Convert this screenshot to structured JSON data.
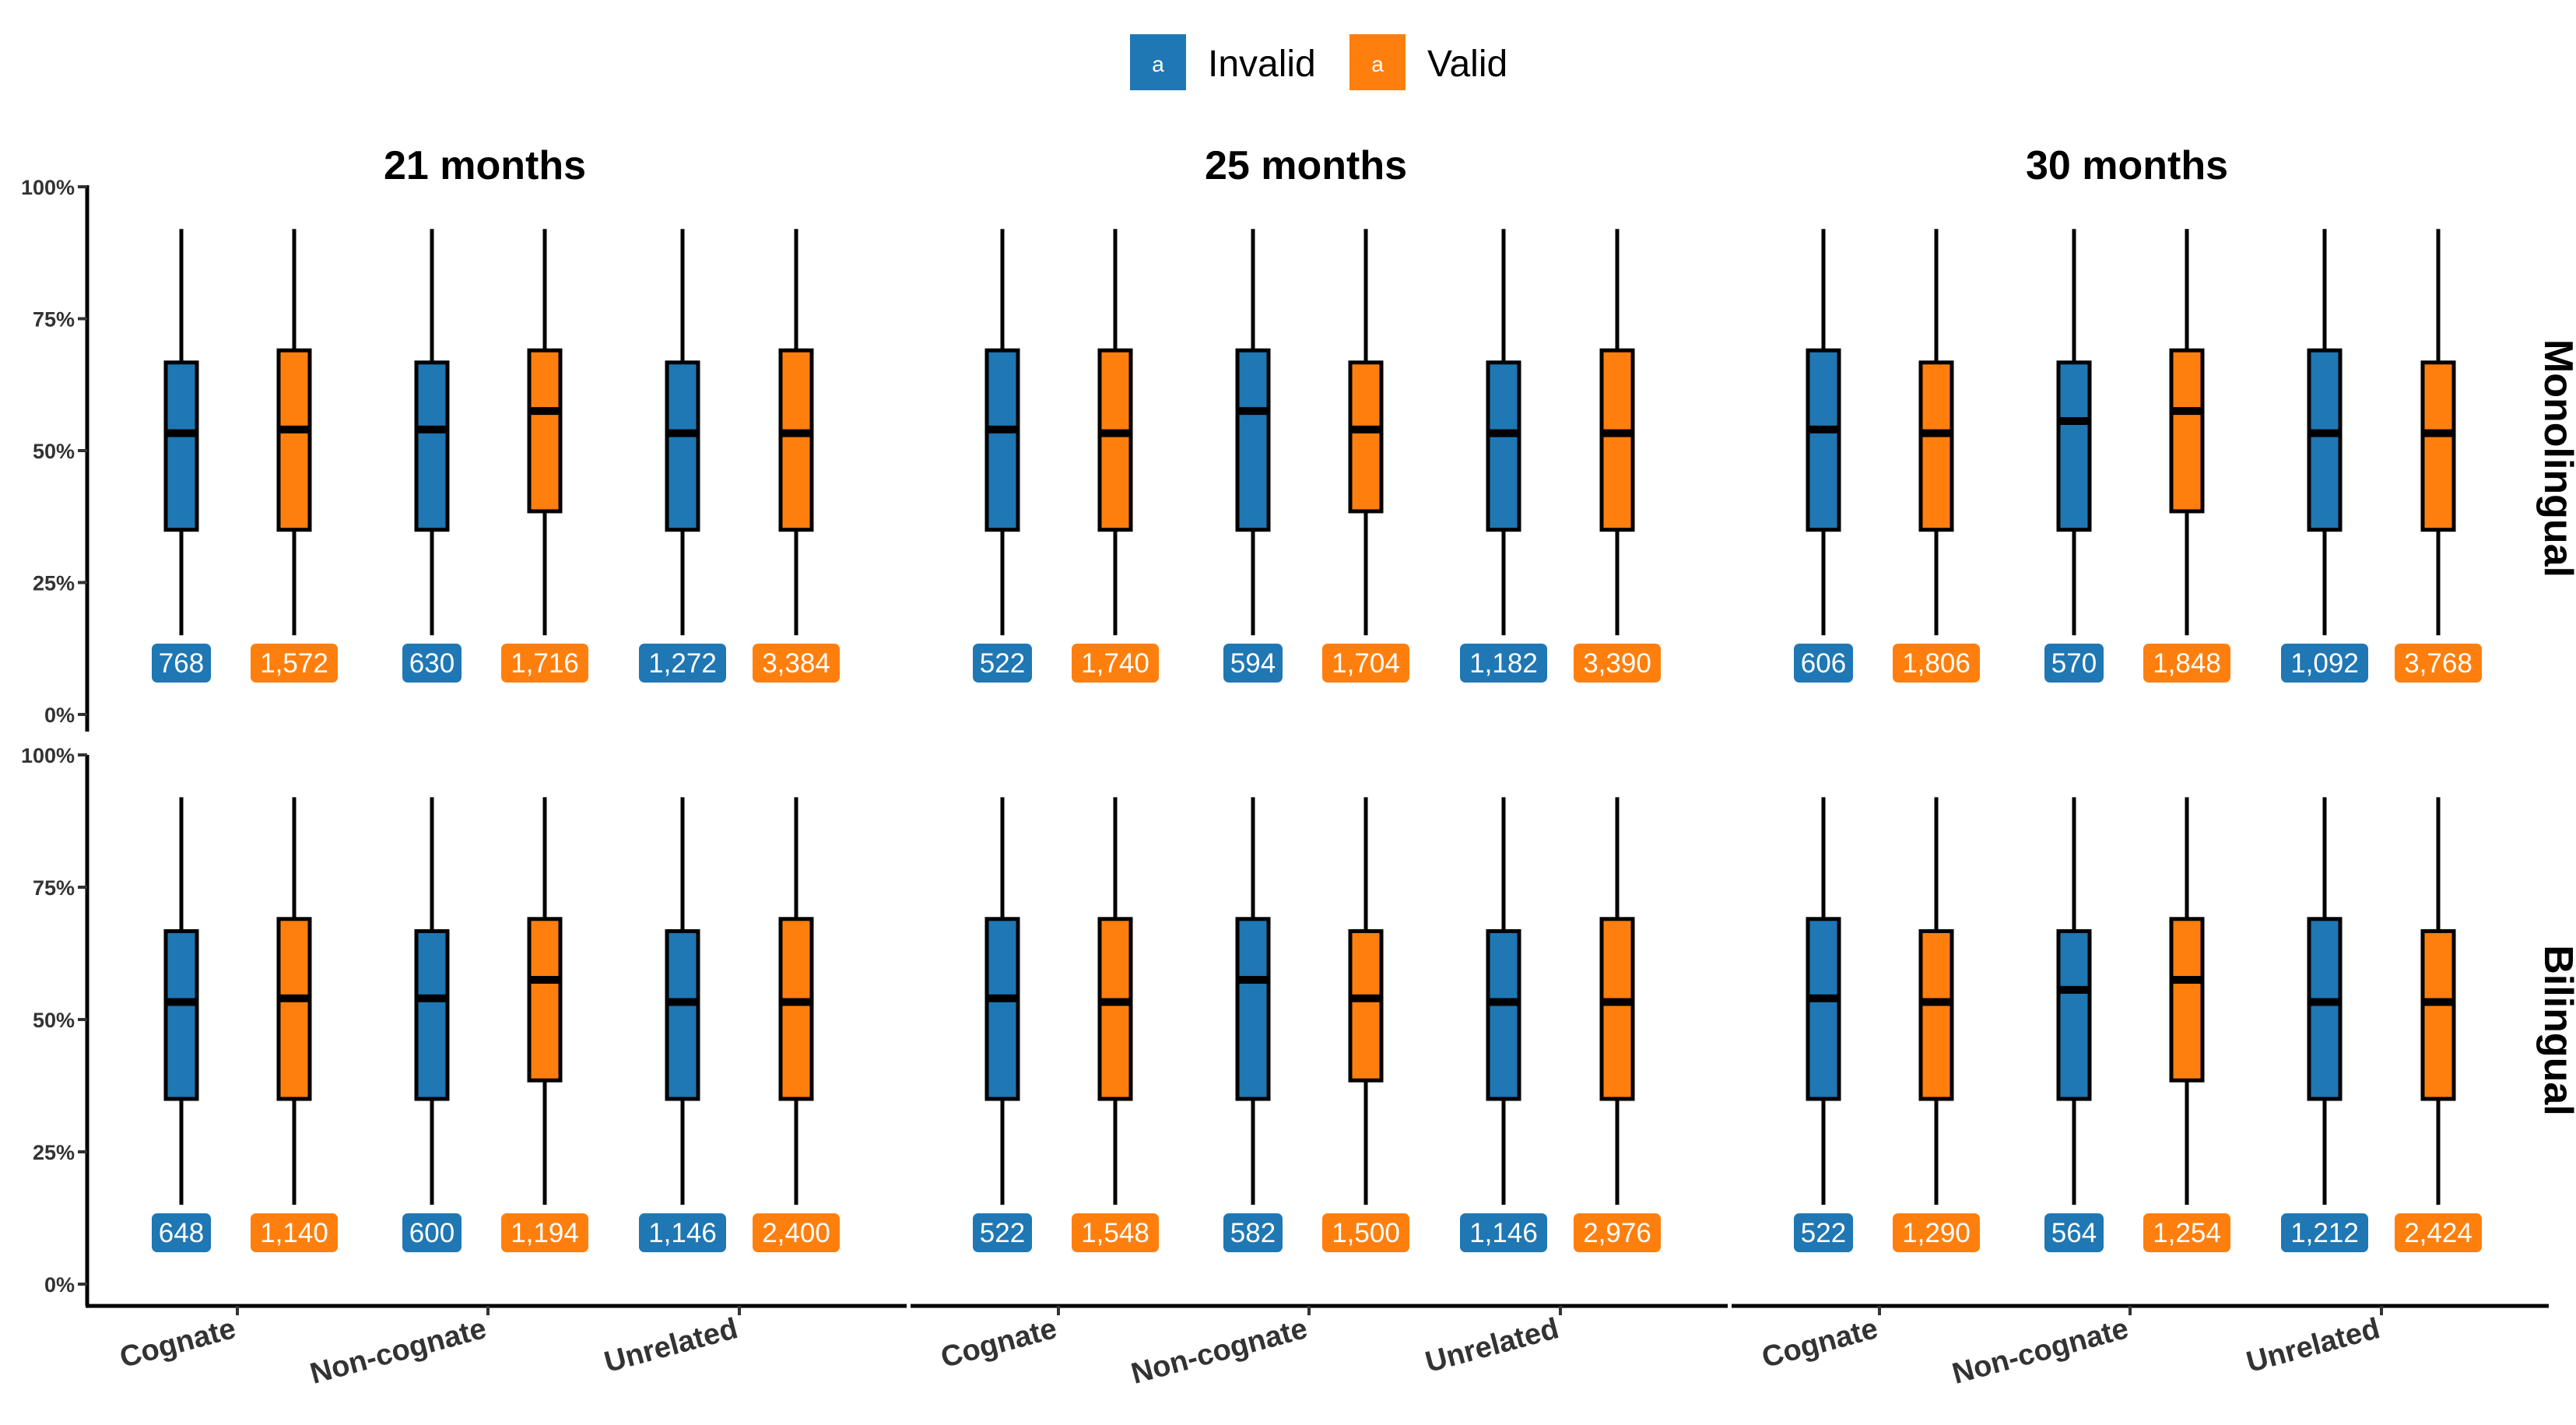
{
  "chart_data": {
    "type": "boxplot",
    "colors": {
      "Invalid": "#1f77b4",
      "Valid": "#ff7f0e"
    },
    "legend": {
      "position": "top",
      "key_letter": "a",
      "entries": [
        "Invalid",
        "Valid"
      ]
    },
    "columns": [
      "21 months",
      "25 months",
      "30 months"
    ],
    "rows": [
      "Monolingual",
      "Bilingual"
    ],
    "categories": [
      "Cognate",
      "Non-cognate",
      "Unrelated"
    ],
    "series": [
      "Invalid",
      "Valid"
    ],
    "y_ticks": [
      "0%",
      "25%",
      "50%",
      "75%",
      "100%"
    ],
    "ylim": [
      0,
      1
    ],
    "grid": false,
    "panels": [
      {
        "row": "Monolingual",
        "col": "21 months",
        "boxes": [
          {
            "category": "Cognate",
            "series": "Invalid",
            "min": 0.15,
            "q1": 0.35,
            "median": 0.533,
            "q3": 0.667,
            "max": 0.92,
            "n": "768"
          },
          {
            "category": "Cognate",
            "series": "Valid",
            "min": 0.15,
            "q1": 0.35,
            "median": 0.54,
            "q3": 0.69,
            "max": 0.92,
            "n": "1,572"
          },
          {
            "category": "Non-cognate",
            "series": "Invalid",
            "min": 0.15,
            "q1": 0.35,
            "median": 0.54,
            "q3": 0.667,
            "max": 0.92,
            "n": "630"
          },
          {
            "category": "Non-cognate",
            "series": "Valid",
            "min": 0.15,
            "q1": 0.385,
            "median": 0.575,
            "q3": 0.69,
            "max": 0.92,
            "n": "1,716"
          },
          {
            "category": "Unrelated",
            "series": "Invalid",
            "min": 0.15,
            "q1": 0.35,
            "median": 0.533,
            "q3": 0.667,
            "max": 0.92,
            "n": "1,272"
          },
          {
            "category": "Unrelated",
            "series": "Valid",
            "min": 0.15,
            "q1": 0.35,
            "median": 0.533,
            "q3": 0.69,
            "max": 0.92,
            "n": "3,384"
          }
        ]
      },
      {
        "row": "Monolingual",
        "col": "25 months",
        "boxes": [
          {
            "category": "Cognate",
            "series": "Invalid",
            "min": 0.15,
            "q1": 0.35,
            "median": 0.54,
            "q3": 0.69,
            "max": 0.92,
            "n": "522"
          },
          {
            "category": "Cognate",
            "series": "Valid",
            "min": 0.15,
            "q1": 0.35,
            "median": 0.533,
            "q3": 0.69,
            "max": 0.92,
            "n": "1,740"
          },
          {
            "category": "Non-cognate",
            "series": "Invalid",
            "min": 0.15,
            "q1": 0.35,
            "median": 0.575,
            "q3": 0.69,
            "max": 0.92,
            "n": "594"
          },
          {
            "category": "Non-cognate",
            "series": "Valid",
            "min": 0.15,
            "q1": 0.385,
            "median": 0.54,
            "q3": 0.667,
            "max": 0.92,
            "n": "1,704"
          },
          {
            "category": "Unrelated",
            "series": "Invalid",
            "min": 0.15,
            "q1": 0.35,
            "median": 0.533,
            "q3": 0.667,
            "max": 0.92,
            "n": "1,182"
          },
          {
            "category": "Unrelated",
            "series": "Valid",
            "min": 0.15,
            "q1": 0.35,
            "median": 0.533,
            "q3": 0.69,
            "max": 0.92,
            "n": "3,390"
          }
        ]
      },
      {
        "row": "Monolingual",
        "col": "30 months",
        "boxes": [
          {
            "category": "Cognate",
            "series": "Invalid",
            "min": 0.15,
            "q1": 0.35,
            "median": 0.54,
            "q3": 0.69,
            "max": 0.92,
            "n": "606"
          },
          {
            "category": "Cognate",
            "series": "Valid",
            "min": 0.15,
            "q1": 0.35,
            "median": 0.533,
            "q3": 0.667,
            "max": 0.92,
            "n": "1,806"
          },
          {
            "category": "Non-cognate",
            "series": "Invalid",
            "min": 0.15,
            "q1": 0.35,
            "median": 0.556,
            "q3": 0.667,
            "max": 0.92,
            "n": "570"
          },
          {
            "category": "Non-cognate",
            "series": "Valid",
            "min": 0.15,
            "q1": 0.385,
            "median": 0.575,
            "q3": 0.69,
            "max": 0.92,
            "n": "1,848"
          },
          {
            "category": "Unrelated",
            "series": "Invalid",
            "min": 0.15,
            "q1": 0.35,
            "median": 0.533,
            "q3": 0.69,
            "max": 0.92,
            "n": "1,092"
          },
          {
            "category": "Unrelated",
            "series": "Valid",
            "min": 0.15,
            "q1": 0.35,
            "median": 0.533,
            "q3": 0.667,
            "max": 0.92,
            "n": "3,768"
          }
        ]
      },
      {
        "row": "Bilingual",
        "col": "21 months",
        "boxes": [
          {
            "category": "Cognate",
            "series": "Invalid",
            "min": 0.15,
            "q1": 0.35,
            "median": 0.533,
            "q3": 0.667,
            "max": 0.92,
            "n": "648"
          },
          {
            "category": "Cognate",
            "series": "Valid",
            "min": 0.15,
            "q1": 0.35,
            "median": 0.54,
            "q3": 0.69,
            "max": 0.92,
            "n": "1,140"
          },
          {
            "category": "Non-cognate",
            "series": "Invalid",
            "min": 0.15,
            "q1": 0.35,
            "median": 0.54,
            "q3": 0.667,
            "max": 0.92,
            "n": "600"
          },
          {
            "category": "Non-cognate",
            "series": "Valid",
            "min": 0.15,
            "q1": 0.385,
            "median": 0.575,
            "q3": 0.69,
            "max": 0.92,
            "n": "1,194"
          },
          {
            "category": "Unrelated",
            "series": "Invalid",
            "min": 0.15,
            "q1": 0.35,
            "median": 0.533,
            "q3": 0.667,
            "max": 0.92,
            "n": "1,146"
          },
          {
            "category": "Unrelated",
            "series": "Valid",
            "min": 0.15,
            "q1": 0.35,
            "median": 0.533,
            "q3": 0.69,
            "max": 0.92,
            "n": "2,400"
          }
        ]
      },
      {
        "row": "Bilingual",
        "col": "25 months",
        "boxes": [
          {
            "category": "Cognate",
            "series": "Invalid",
            "min": 0.15,
            "q1": 0.35,
            "median": 0.54,
            "q3": 0.69,
            "max": 0.92,
            "n": "522"
          },
          {
            "category": "Cognate",
            "series": "Valid",
            "min": 0.15,
            "q1": 0.35,
            "median": 0.533,
            "q3": 0.69,
            "max": 0.92,
            "n": "1,548"
          },
          {
            "category": "Non-cognate",
            "series": "Invalid",
            "min": 0.15,
            "q1": 0.35,
            "median": 0.575,
            "q3": 0.69,
            "max": 0.92,
            "n": "582"
          },
          {
            "category": "Non-cognate",
            "series": "Valid",
            "min": 0.15,
            "q1": 0.385,
            "median": 0.54,
            "q3": 0.667,
            "max": 0.92,
            "n": "1,500"
          },
          {
            "category": "Unrelated",
            "series": "Invalid",
            "min": 0.15,
            "q1": 0.35,
            "median": 0.533,
            "q3": 0.667,
            "max": 0.92,
            "n": "1,146"
          },
          {
            "category": "Unrelated",
            "series": "Valid",
            "min": 0.15,
            "q1": 0.35,
            "median": 0.533,
            "q3": 0.69,
            "max": 0.92,
            "n": "2,976"
          }
        ]
      },
      {
        "row": "Bilingual",
        "col": "30 months",
        "boxes": [
          {
            "category": "Cognate",
            "series": "Invalid",
            "min": 0.15,
            "q1": 0.35,
            "median": 0.54,
            "q3": 0.69,
            "max": 0.92,
            "n": "522"
          },
          {
            "category": "Cognate",
            "series": "Valid",
            "min": 0.15,
            "q1": 0.35,
            "median": 0.533,
            "q3": 0.667,
            "max": 0.92,
            "n": "1,290"
          },
          {
            "category": "Non-cognate",
            "series": "Invalid",
            "min": 0.15,
            "q1": 0.35,
            "median": 0.556,
            "q3": 0.667,
            "max": 0.92,
            "n": "564"
          },
          {
            "category": "Non-cognate",
            "series": "Valid",
            "min": 0.15,
            "q1": 0.385,
            "median": 0.575,
            "q3": 0.69,
            "max": 0.92,
            "n": "1,254"
          },
          {
            "category": "Unrelated",
            "series": "Invalid",
            "min": 0.15,
            "q1": 0.35,
            "median": 0.533,
            "q3": 0.69,
            "max": 0.92,
            "n": "1,212"
          },
          {
            "category": "Unrelated",
            "series": "Valid",
            "min": 0.15,
            "q1": 0.35,
            "median": 0.533,
            "q3": 0.667,
            "max": 0.92,
            "n": "2,424"
          }
        ]
      }
    ]
  }
}
